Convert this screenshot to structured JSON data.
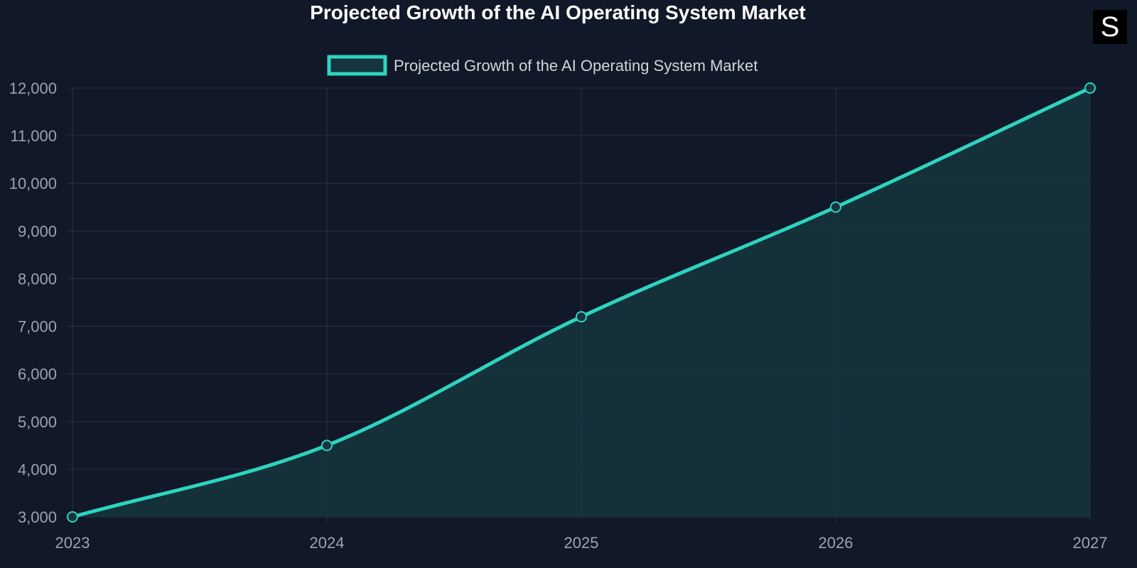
{
  "chart_data": {
    "type": "line",
    "title": "Projected Growth of the AI Operating System Market",
    "categories": [
      "2023",
      "2024",
      "2025",
      "2026",
      "2027"
    ],
    "series": [
      {
        "name": "Projected Growth of the AI Operating System Market",
        "values": [
          3000,
          4500,
          7200,
          9500,
          12000
        ]
      }
    ],
    "ylim": [
      3000,
      12000
    ],
    "yticks": [
      3000,
      4000,
      5000,
      6000,
      7000,
      8000,
      9000,
      10000,
      11000,
      12000
    ],
    "ytick_labels": [
      "3,000",
      "4,000",
      "5,000",
      "6,000",
      "7,000",
      "8,000",
      "9,000",
      "10,000",
      "11,000",
      "12,000"
    ],
    "xlabel": "",
    "ylabel": "",
    "grid": true,
    "legend": "top-center",
    "fill": true,
    "colors": {
      "line": "#2dd4bf",
      "fill": "#15343d",
      "grid": "#2a3341",
      "tick": "#9ca3af",
      "legend_text": "#d1d5db"
    }
  },
  "logo": {
    "text": "S"
  }
}
